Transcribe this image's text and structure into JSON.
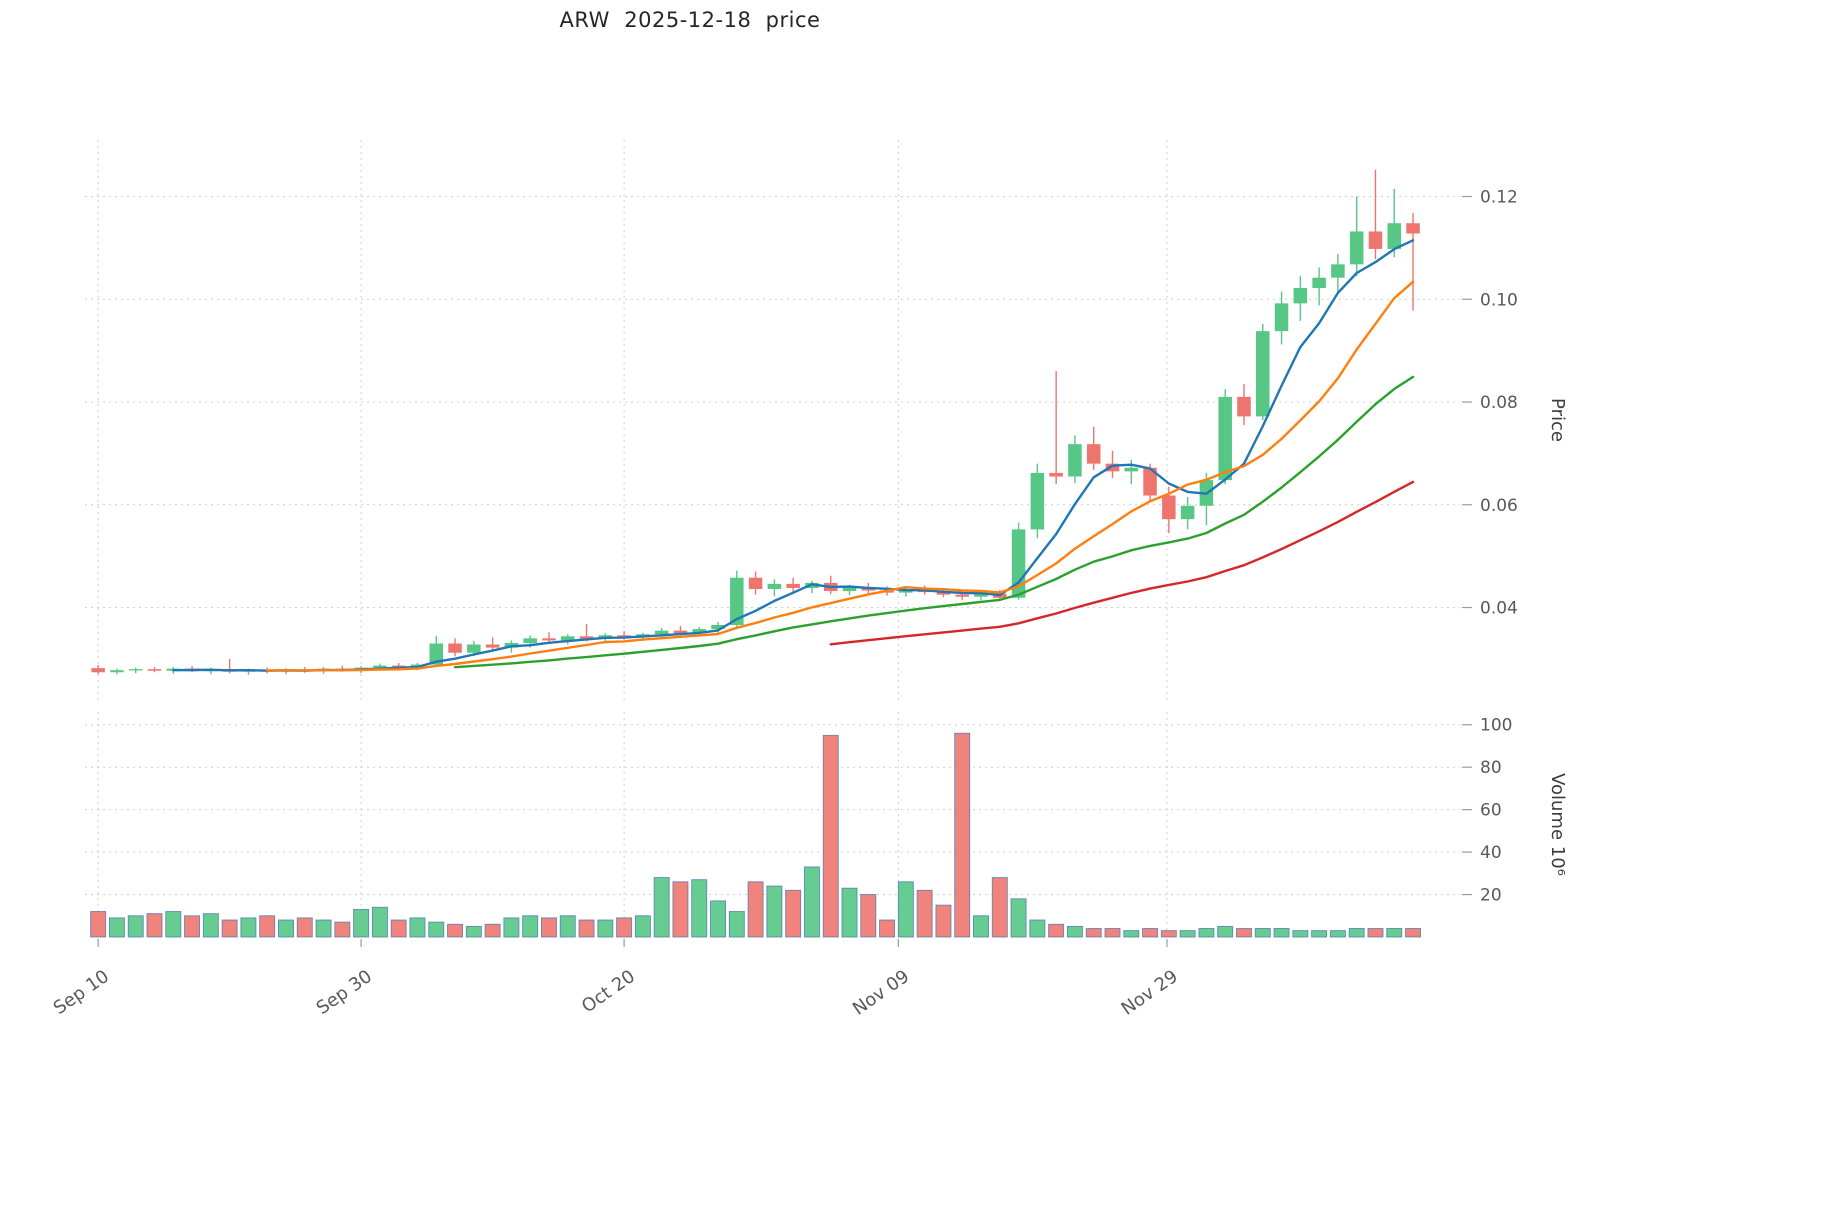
{
  "title": "ARW  2025-12-18  price",
  "colors": {
    "up": "#57c786",
    "down": "#ee756e",
    "ma_colors": [
      "#1f77b4",
      "#ff7f0e",
      "#2ca02c",
      "#d62728"
    ],
    "grid": "#cfcfcf",
    "tick_text": "#595959",
    "axis_label_text": "#3c3c3c",
    "volume_bar_edge": "#4f7db3",
    "background": "#ffffff"
  },
  "chart_data": {
    "type": "candlestick",
    "title": "ARW  2025-12-18  price",
    "ylabel_price": "Price",
    "ylabel_volume": "Volume  10⁶",
    "legend_position": "none",
    "grid": "dashed",
    "price_ylim": [
      0.022,
      0.131
    ],
    "volume_ylim": [
      0,
      106
    ],
    "price_yticks": [
      0.04,
      0.06,
      0.08,
      0.1,
      0.12
    ],
    "volume_yticks": [
      20,
      40,
      60,
      80,
      100
    ],
    "xticks": [
      {
        "i": 0,
        "label": "Sep 10"
      },
      {
        "i": 14,
        "label": "Sep 30"
      },
      {
        "i": 28,
        "label": "Oct 20"
      },
      {
        "i": 42.6,
        "label": "Nov 09"
      },
      {
        "i": 56.9,
        "label": "Nov 29"
      }
    ],
    "ma_windows": [
      5,
      10,
      20,
      40
    ],
    "dates": [
      "2025-09-10",
      "2025-09-11",
      "2025-09-12",
      "2025-09-15",
      "2025-09-16",
      "2025-09-17",
      "2025-09-18",
      "2025-09-19",
      "2025-09-22",
      "2025-09-23",
      "2025-09-24",
      "2025-09-25",
      "2025-09-26",
      "2025-09-29",
      "2025-09-30",
      "2025-10-01",
      "2025-10-02",
      "2025-10-03",
      "2025-10-06",
      "2025-10-07",
      "2025-10-08",
      "2025-10-09",
      "2025-10-10",
      "2025-10-13",
      "2025-10-14",
      "2025-10-15",
      "2025-10-16",
      "2025-10-17",
      "2025-10-20",
      "2025-10-21",
      "2025-10-22",
      "2025-10-23",
      "2025-10-24",
      "2025-10-27",
      "2025-10-28",
      "2025-10-29",
      "2025-10-30",
      "2025-10-31",
      "2025-11-03",
      "2025-11-04",
      "2025-11-05",
      "2025-11-06",
      "2025-11-07",
      "2025-11-10",
      "2025-11-11",
      "2025-11-12",
      "2025-11-13",
      "2025-11-14",
      "2025-11-17",
      "2025-11-18",
      "2025-11-19",
      "2025-11-20",
      "2025-11-21",
      "2025-11-24",
      "2025-11-25",
      "2025-11-26",
      "2025-11-28",
      "2025-12-01",
      "2025-12-02",
      "2025-12-03",
      "2025-12-04",
      "2025-12-05",
      "2025-12-08",
      "2025-12-09",
      "2025-12-10",
      "2025-12-11",
      "2025-12-12",
      "2025-12-15",
      "2025-12-16",
      "2025-12-17",
      "2025-12-18"
    ],
    "open": [
      0.0282,
      0.0274,
      0.0278,
      0.028,
      0.0277,
      0.0281,
      0.0276,
      0.028,
      0.0275,
      0.0278,
      0.0276,
      0.0279,
      0.0277,
      0.0281,
      0.0278,
      0.0283,
      0.0287,
      0.0284,
      0.0289,
      0.033,
      0.0312,
      0.0328,
      0.0322,
      0.0331,
      0.034,
      0.0336,
      0.0344,
      0.0339,
      0.0346,
      0.0342,
      0.0348,
      0.0355,
      0.035,
      0.0358,
      0.0366,
      0.0458,
      0.0436,
      0.0446,
      0.0438,
      0.0448,
      0.0432,
      0.044,
      0.0433,
      0.0429,
      0.0436,
      0.043,
      0.0425,
      0.0421,
      0.0427,
      0.0419,
      0.0552,
      0.0662,
      0.0655,
      0.0718,
      0.068,
      0.0665,
      0.0672,
      0.0618,
      0.0572,
      0.0598,
      0.0648,
      0.081,
      0.0772,
      0.0938,
      0.0992,
      0.1022,
      0.1042,
      0.1068,
      0.1132,
      0.1098,
      0.1148
    ],
    "high": [
      0.0288,
      0.0281,
      0.0283,
      0.0284,
      0.0284,
      0.0286,
      0.0283,
      0.03,
      0.0281,
      0.0283,
      0.0282,
      0.0284,
      0.0284,
      0.0287,
      0.0286,
      0.0291,
      0.0292,
      0.0292,
      0.0345,
      0.034,
      0.0335,
      0.0342,
      0.0336,
      0.0346,
      0.0352,
      0.0348,
      0.0368,
      0.035,
      0.0354,
      0.0351,
      0.036,
      0.0364,
      0.0362,
      0.0372,
      0.0472,
      0.047,
      0.0455,
      0.0458,
      0.0452,
      0.0462,
      0.0444,
      0.0448,
      0.0441,
      0.044,
      0.0443,
      0.0438,
      0.0435,
      0.0431,
      0.0434,
      0.0565,
      0.068,
      0.086,
      0.0735,
      0.0752,
      0.0705,
      0.0688,
      0.068,
      0.0635,
      0.0615,
      0.0662,
      0.0825,
      0.0835,
      0.0952,
      0.1015,
      0.1045,
      0.1062,
      0.1088,
      0.12,
      0.1252,
      0.1215,
      0.1168
    ],
    "low": [
      0.027,
      0.027,
      0.0272,
      0.0274,
      0.0271,
      0.0274,
      0.027,
      0.0272,
      0.0269,
      0.0272,
      0.027,
      0.0273,
      0.0271,
      0.0275,
      0.0272,
      0.0277,
      0.028,
      0.0278,
      0.0285,
      0.0305,
      0.0305,
      0.0315,
      0.0312,
      0.0322,
      0.033,
      0.0328,
      0.0334,
      0.033,
      0.0338,
      0.0335,
      0.0342,
      0.0346,
      0.0344,
      0.035,
      0.036,
      0.0425,
      0.0422,
      0.043,
      0.0428,
      0.0426,
      0.0424,
      0.0428,
      0.0423,
      0.0421,
      0.0425,
      0.042,
      0.0415,
      0.0414,
      0.0413,
      0.0415,
      0.0535,
      0.064,
      0.0642,
      0.0668,
      0.0652,
      0.064,
      0.0605,
      0.0545,
      0.0552,
      0.056,
      0.064,
      0.0755,
      0.0765,
      0.0912,
      0.0958,
      0.0988,
      0.1012,
      0.1045,
      0.1078,
      0.1082,
      0.0978
    ],
    "close": [
      0.0274,
      0.0278,
      0.028,
      0.0277,
      0.0281,
      0.0276,
      0.028,
      0.0275,
      0.0278,
      0.0276,
      0.0279,
      0.0277,
      0.0281,
      0.0278,
      0.0283,
      0.0287,
      0.0284,
      0.0289,
      0.033,
      0.0312,
      0.0328,
      0.0322,
      0.0331,
      0.034,
      0.0336,
      0.0344,
      0.0339,
      0.0346,
      0.0342,
      0.0348,
      0.0355,
      0.035,
      0.0358,
      0.0366,
      0.0458,
      0.0436,
      0.0446,
      0.0438,
      0.0448,
      0.0432,
      0.044,
      0.0433,
      0.0429,
      0.0436,
      0.043,
      0.0425,
      0.0421,
      0.0427,
      0.0419,
      0.0552,
      0.0662,
      0.0655,
      0.0718,
      0.068,
      0.0665,
      0.0672,
      0.0618,
      0.0572,
      0.0598,
      0.0648,
      0.081,
      0.0772,
      0.0938,
      0.0992,
      0.1022,
      0.1042,
      0.1068,
      0.1132,
      0.1098,
      0.1148,
      0.1128
    ],
    "volume_millions": [
      12,
      9,
      10,
      11,
      12,
      10,
      11,
      8,
      9,
      10,
      8,
      9,
      8,
      7,
      13,
      14,
      8,
      9,
      7,
      6,
      5,
      6,
      9,
      10,
      9,
      10,
      8,
      8,
      9,
      10,
      28,
      26,
      27,
      17,
      12,
      26,
      24,
      22,
      33,
      95,
      23,
      20,
      8,
      26,
      22,
      15,
      96,
      10,
      28,
      18,
      8,
      6,
      5,
      4,
      4,
      3,
      4,
      3,
      3,
      4,
      5,
      4,
      4,
      4,
      3,
      3,
      3,
      4,
      4,
      4,
      4
    ]
  }
}
